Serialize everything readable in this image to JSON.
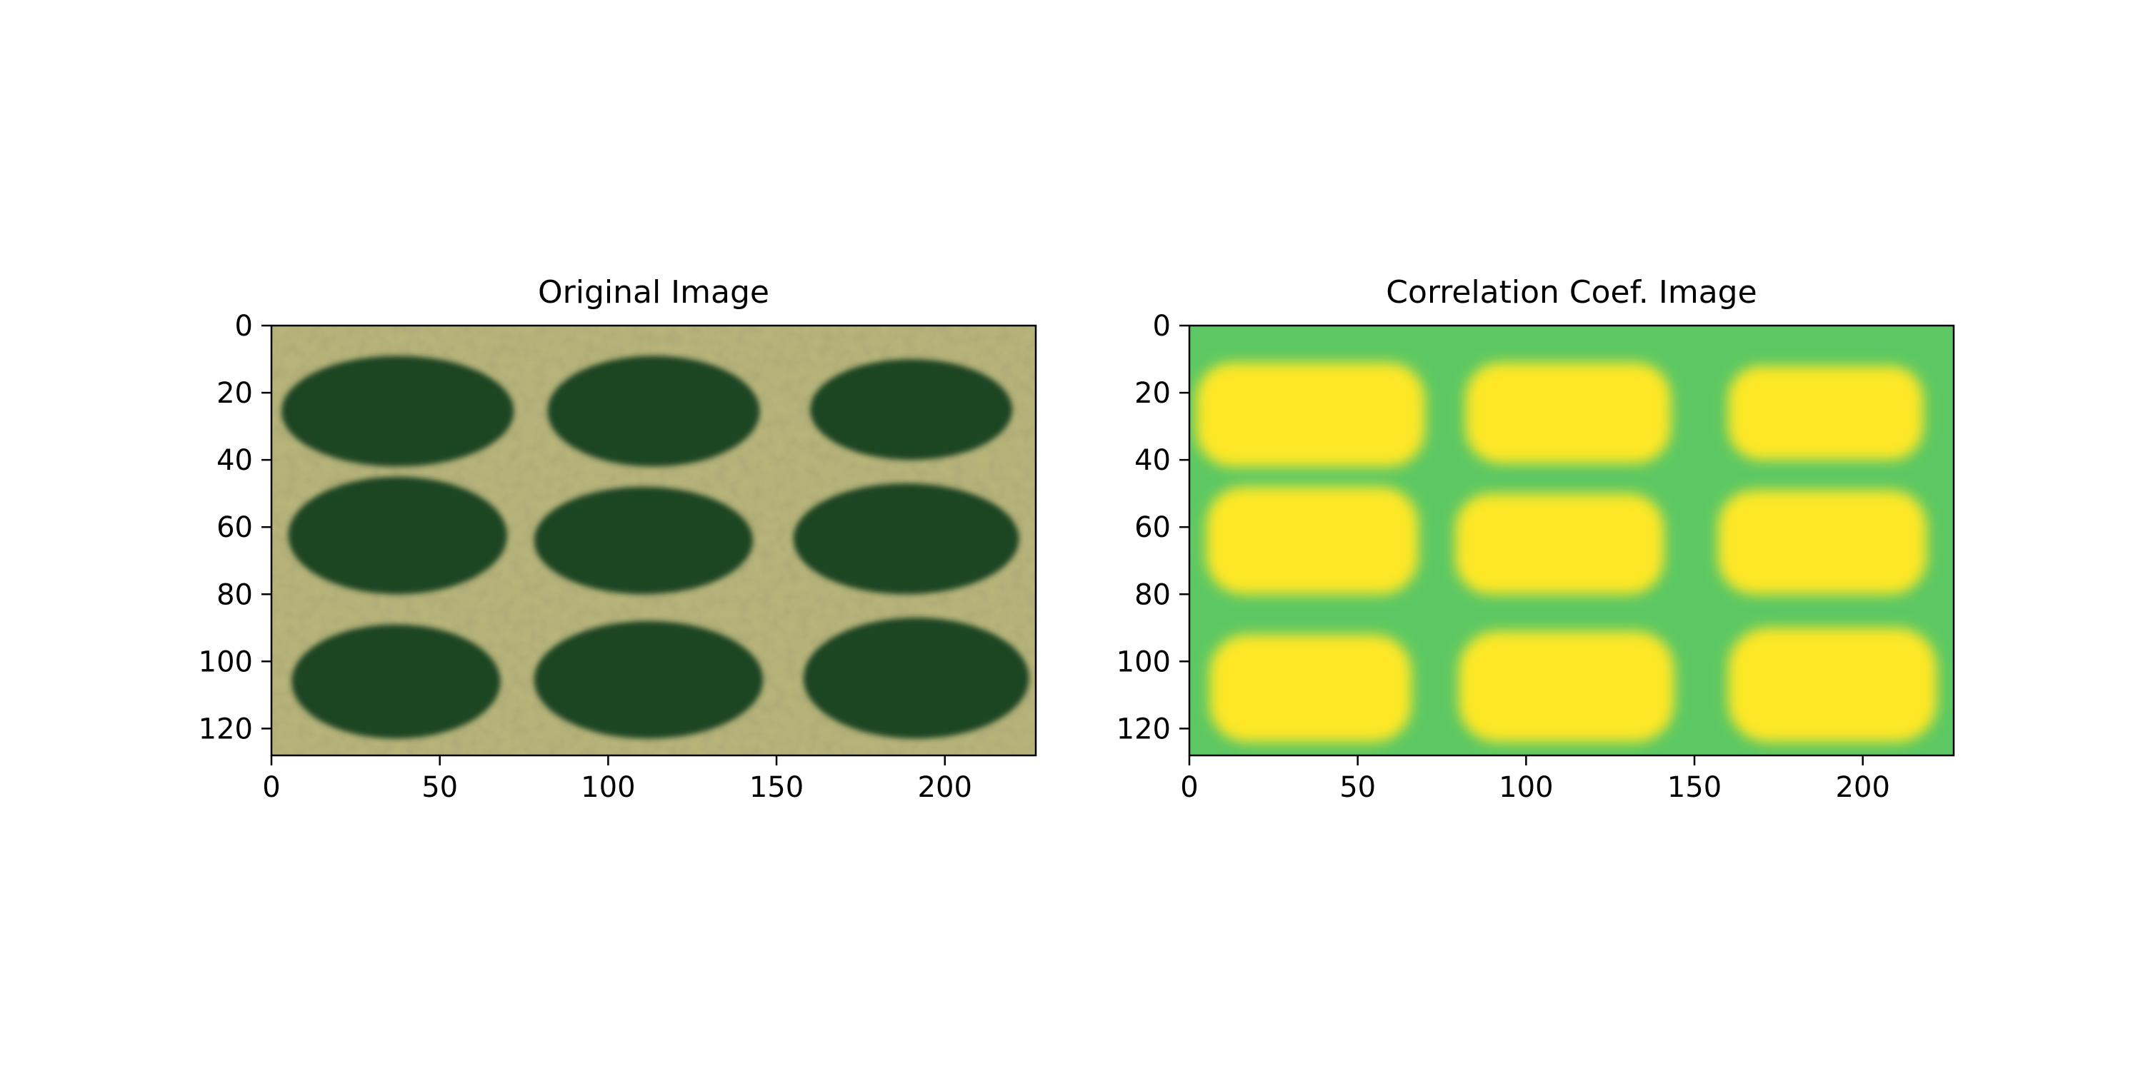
{
  "chart_data": [
    {
      "type": "image",
      "title": "Original Image",
      "xlabel": "",
      "ylabel": "",
      "xlim": [
        0,
        227
      ],
      "ylim": [
        128,
        0
      ],
      "xticks": [
        0,
        50,
        100,
        150,
        200
      ],
      "yticks": [
        0,
        20,
        40,
        60,
        80,
        100,
        120
      ],
      "colors": {
        "ground": "#b8b57a",
        "vegetation": "#1f4423"
      },
      "bushes": [
        {
          "x0": 3,
          "x1": 72,
          "y0": 9,
          "y1": 42
        },
        {
          "x0": 82,
          "x1": 145,
          "y0": 9,
          "y1": 42
        },
        {
          "x0": 160,
          "x1": 220,
          "y0": 10,
          "y1": 40
        },
        {
          "x0": 5,
          "x1": 70,
          "y0": 45,
          "y1": 80
        },
        {
          "x0": 78,
          "x1": 143,
          "y0": 48,
          "y1": 80
        },
        {
          "x0": 155,
          "x1": 222,
          "y0": 47,
          "y1": 80
        },
        {
          "x0": 6,
          "x1": 68,
          "y0": 89,
          "y1": 123
        },
        {
          "x0": 78,
          "x1": 146,
          "y0": 88,
          "y1": 123
        },
        {
          "x0": 158,
          "x1": 225,
          "y0": 87,
          "y1": 123
        }
      ]
    },
    {
      "type": "heatmap",
      "title": "Correlation Coef. Image",
      "xlabel": "",
      "ylabel": "",
      "xlim": [
        0,
        227
      ],
      "ylim": [
        128,
        0
      ],
      "xticks": [
        0,
        50,
        100,
        150,
        200
      ],
      "yticks": [
        0,
        20,
        40,
        60,
        80,
        100,
        120
      ],
      "colormap": "viridis",
      "colors": {
        "background": "#5dc863",
        "high": "#fde725",
        "low": "#21918c"
      },
      "high_regions": [
        {
          "x0": 2,
          "x1": 70,
          "y0": 11,
          "y1": 42
        },
        {
          "x0": 82,
          "x1": 143,
          "y0": 11,
          "y1": 41
        },
        {
          "x0": 160,
          "x1": 218,
          "y0": 12,
          "y1": 40
        },
        {
          "x0": 5,
          "x1": 68,
          "y0": 48,
          "y1": 80
        },
        {
          "x0": 79,
          "x1": 141,
          "y0": 50,
          "y1": 80
        },
        {
          "x0": 157,
          "x1": 219,
          "y0": 49,
          "y1": 80
        },
        {
          "x0": 6,
          "x1": 66,
          "y0": 92,
          "y1": 124
        },
        {
          "x0": 80,
          "x1": 144,
          "y0": 91,
          "y1": 124
        },
        {
          "x0": 160,
          "x1": 222,
          "y0": 90,
          "y1": 124
        }
      ]
    }
  ]
}
